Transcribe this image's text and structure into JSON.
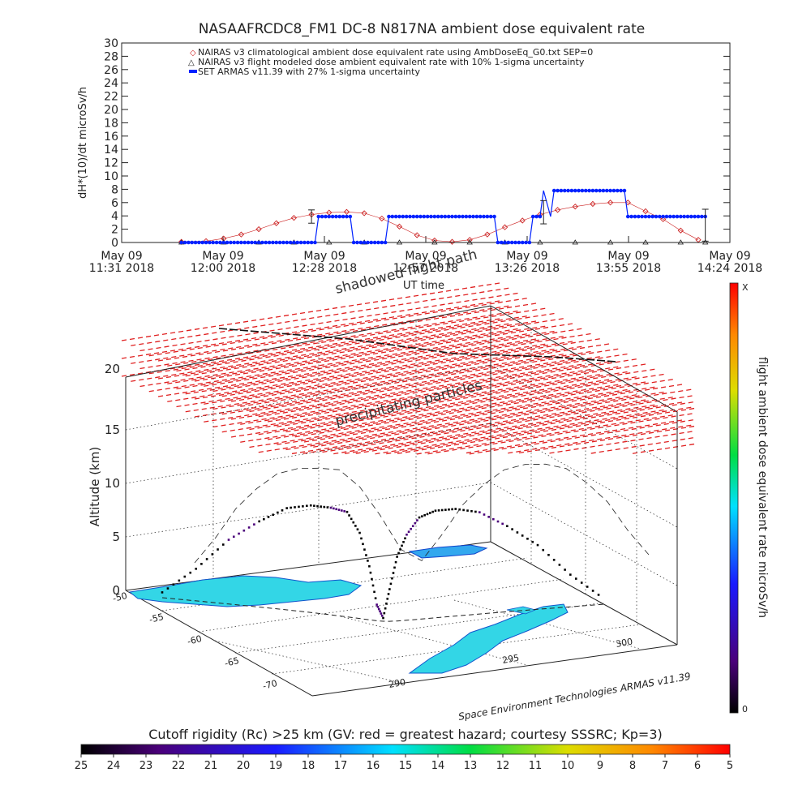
{
  "chart_data": [
    {
      "type": "line",
      "title": "NASAAFRCDC8_FM1 DC-8    N817NA ambient dose equivalent rate",
      "ylabel": "dH*(10)/dt microSv/h",
      "ylim": [
        0,
        30
      ],
      "yticks": [
        "0",
        "2",
        "4",
        "6",
        "8",
        "10",
        "12",
        "14",
        "16",
        "18",
        "20",
        "22",
        "24",
        "26",
        "28",
        "30"
      ],
      "x_tick_labels": [
        {
          "date": "May 09",
          "time": "11:31 2018"
        },
        {
          "date": "May 09",
          "time": "12:00 2018"
        },
        {
          "date": "May 09",
          "time": "12:28 2018"
        },
        {
          "date": "May 09",
          "time": "12:57 2018"
        },
        {
          "date": "May 09",
          "time": "13:26 2018"
        },
        {
          "date": "May 09",
          "time": "13:55 2018"
        },
        {
          "date": "May 09",
          "time": "14:24 2018"
        }
      ],
      "xlabel": "UT time",
      "legend": [
        "NAIRAS v3 climatological ambient dose equivalent rate using AmbDoseEq_G0.txt SEP=0",
        "NAIRAS v3 flight modeled dose ambient equivalent rate with 10% 1-sigma uncertainty",
        "SET ARMAS v11.39 with 27% 1-sigma uncertainty"
      ],
      "series": [
        {
          "name": "NAIRAS v3 climatological ambient dose equivalent rate using AmbDoseEq_G0.txt SEP=0",
          "color": "#cc2222",
          "x": [
            "11:48",
            "11:55",
            "12:00",
            "12:05",
            "12:10",
            "12:15",
            "12:20",
            "12:25",
            "12:30",
            "12:35",
            "12:40",
            "12:45",
            "12:50",
            "12:55",
            "13:00",
            "13:05",
            "13:10",
            "13:15",
            "13:20",
            "13:25",
            "13:30",
            "13:35",
            "13:40",
            "13:45",
            "13:50",
            "13:55",
            "14:00",
            "14:05",
            "14:10",
            "14:15"
          ],
          "y": [
            0.1,
            0.2,
            0.6,
            1.2,
            2.0,
            2.9,
            3.7,
            4.2,
            4.5,
            4.6,
            4.4,
            3.6,
            2.4,
            1.1,
            0.3,
            0.1,
            0.4,
            1.2,
            2.3,
            3.3,
            4.2,
            4.9,
            5.4,
            5.8,
            6.0,
            6.0,
            4.7,
            3.5,
            1.8,
            0.4
          ]
        },
        {
          "name": "NAIRAS v3 flight modeled dose ambient equivalent rate with 10% 1-sigma uncertainty",
          "color": "#000000",
          "x": [
            "11:48",
            "12:00",
            "12:10",
            "12:20",
            "12:30",
            "12:40",
            "12:50",
            "13:00",
            "13:10",
            "13:20",
            "13:30",
            "13:40",
            "13:50",
            "14:00",
            "14:10",
            "14:17"
          ],
          "y": [
            0,
            0,
            0,
            0,
            0,
            0,
            0,
            0,
            0,
            0,
            0,
            0,
            0,
            0,
            0,
            0
          ]
        },
        {
          "name": "SET ARMAS v11.39 with 27% 1-sigma uncertainty",
          "color": "#0022ff",
          "x": [
            "11:48",
            "12:26",
            "12:27",
            "12:36",
            "12:37",
            "12:46",
            "12:47",
            "13:17",
            "13:18",
            "13:27",
            "13:28",
            "13:30",
            "13:31",
            "13:33",
            "13:34",
            "13:54",
            "13:55",
            "14:17"
          ],
          "y": [
            0,
            0,
            3.9,
            3.9,
            0,
            0,
            3.9,
            3.9,
            0,
            0,
            3.9,
            3.9,
            7.8,
            3.9,
            7.8,
            7.8,
            3.9,
            3.9
          ]
        }
      ],
      "error_bars": [
        {
          "x": "12:25",
          "y": 3.9,
          "low": 2.9,
          "high": 4.9
        },
        {
          "x": "13:31",
          "y": 5.7,
          "low": 2.8,
          "high": 6.3
        },
        {
          "x": "14:17",
          "y": 3.9,
          "low": 0.2,
          "high": 5.0
        }
      ]
    },
    {
      "type": "scatter",
      "subtype": "3d-flight-track",
      "zlabel": "Altitude (km)",
      "zticks": [
        "0",
        "5",
        "10",
        "15",
        "20"
      ],
      "lat_ticks": [
        "-50",
        "-55",
        "-60",
        "-65",
        "-70"
      ],
      "lon_ticks": [
        "290",
        "295",
        "300"
      ],
      "labels": {
        "shadowed_flight_path": "shadowed flight path",
        "precipitating_particles": "precipitating particles"
      },
      "credit": "Space Environment Technologies ARMAS v11.39",
      "flight_altitude_profile_km": [
        0.5,
        3,
        6,
        8,
        9.5,
        10,
        10,
        9.8,
        8,
        5,
        1.5,
        0.3,
        3,
        6,
        8,
        9.5,
        10,
        10,
        9.5,
        8,
        6,
        3,
        0.5
      ]
    }
  ],
  "colorbar_right": {
    "label": "flight ambient dose equivalent rate microSv/h",
    "top": "X",
    "bottom": "0"
  },
  "colorbar_bottom": {
    "title": "Cutoff rigidity (Rc) >25 km (GV: red = greatest hazard; courtesy SSSRC; Kp=3)",
    "ticks": [
      "25",
      "24",
      "23",
      "22",
      "21",
      "20",
      "19",
      "18",
      "17",
      "16",
      "15",
      "14",
      "13",
      "12",
      "11",
      "10",
      "9",
      "8",
      "7",
      "6",
      "5"
    ]
  }
}
